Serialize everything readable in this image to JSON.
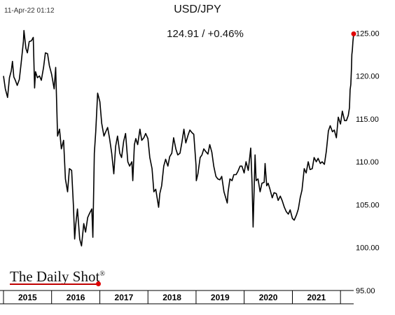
{
  "header": {
    "timestamp": "11-Apr-22 01:12",
    "title": "USD/JPY",
    "last_value_label": "124.91  /  +0.46%"
  },
  "branding": {
    "logo_text": "The Daily Shot",
    "logo_mark": "®",
    "accent_color": "#e00000"
  },
  "chart_data": {
    "type": "line",
    "title": "USD/JPY",
    "xlabel": "",
    "ylabel": "",
    "x_range": [
      "2015-01-01",
      "2022-04-11"
    ],
    "ylim": [
      95,
      126
    ],
    "y_ticks": [
      "95.00",
      "100.00",
      "105.00",
      "110.00",
      "115.00",
      "120.00",
      "125.00"
    ],
    "x_categories": [
      "2015",
      "2016",
      "2017",
      "2018",
      "2019",
      "2020",
      "2021"
    ],
    "grid": false,
    "legend": "none",
    "line_color": "#000000",
    "last_point_color": "#e00000",
    "series": [
      {
        "x": [
          "2015-01-01",
          "2015-01-15",
          "2015-02-01",
          "2015-02-15",
          "2015-03-01",
          "2015-03-10",
          "2015-03-20",
          "2015-04-01",
          "2015-04-15",
          "2015-05-01",
          "2015-05-15",
          "2015-06-01",
          "2015-06-05",
          "2015-06-20",
          "2015-07-01",
          "2015-07-15",
          "2015-08-01",
          "2015-08-15",
          "2015-08-25",
          "2015-09-01",
          "2015-09-15",
          "2015-10-01",
          "2015-10-15",
          "2015-11-01",
          "2015-11-15",
          "2015-12-01",
          "2015-12-15",
          "2016-01-01",
          "2016-01-20",
          "2016-02-01",
          "2016-02-15",
          "2016-03-01",
          "2016-03-15",
          "2016-04-01",
          "2016-04-15",
          "2016-05-01",
          "2016-05-15",
          "2016-06-01",
          "2016-06-15",
          "2016-06-24",
          "2016-07-01",
          "2016-07-15",
          "2016-08-01",
          "2016-08-15",
          "2016-09-01",
          "2016-09-15",
          "2016-10-01",
          "2016-10-15",
          "2016-11-01",
          "2016-11-09",
          "2016-11-20",
          "2016-12-01",
          "2016-12-15",
          "2017-01-01",
          "2017-01-15",
          "2017-02-01",
          "2017-02-15",
          "2017-03-01",
          "2017-03-15",
          "2017-04-01",
          "2017-04-17",
          "2017-05-01",
          "2017-05-15",
          "2017-06-01",
          "2017-06-15",
          "2017-07-01",
          "2017-07-15",
          "2017-08-01",
          "2017-08-15",
          "2017-09-01",
          "2017-09-08",
          "2017-09-20",
          "2017-10-01",
          "2017-10-15",
          "2017-11-01",
          "2017-11-15",
          "2017-12-01",
          "2017-12-15",
          "2018-01-01",
          "2018-01-15",
          "2018-02-01",
          "2018-02-15",
          "2018-03-01",
          "2018-03-23",
          "2018-04-01",
          "2018-04-15",
          "2018-05-01",
          "2018-05-15",
          "2018-06-01",
          "2018-06-15",
          "2018-07-01",
          "2018-07-15",
          "2018-08-01",
          "2018-08-15",
          "2018-09-01",
          "2018-09-15",
          "2018-10-01",
          "2018-10-15",
          "2018-11-01",
          "2018-11-15",
          "2018-12-01",
          "2018-12-15",
          "2019-01-01",
          "2019-01-03",
          "2019-01-15",
          "2019-02-01",
          "2019-02-15",
          "2019-03-01",
          "2019-03-15",
          "2019-04-01",
          "2019-04-15",
          "2019-05-01",
          "2019-05-15",
          "2019-06-01",
          "2019-06-15",
          "2019-07-01",
          "2019-07-15",
          "2019-08-01",
          "2019-08-26",
          "2019-09-01",
          "2019-09-15",
          "2019-10-01",
          "2019-10-15",
          "2019-11-01",
          "2019-11-15",
          "2019-12-01",
          "2019-12-15",
          "2020-01-01",
          "2020-01-15",
          "2020-02-01",
          "2020-02-20",
          "2020-03-01",
          "2020-03-09",
          "2020-03-24",
          "2020-04-01",
          "2020-04-15",
          "2020-05-01",
          "2020-05-15",
          "2020-06-01",
          "2020-06-08",
          "2020-06-20",
          "2020-07-01",
          "2020-07-15",
          "2020-08-01",
          "2020-08-15",
          "2020-09-01",
          "2020-09-15",
          "2020-10-01",
          "2020-10-15",
          "2020-11-01",
          "2020-11-15",
          "2020-12-01",
          "2020-12-15",
          "2021-01-01",
          "2021-01-15",
          "2021-02-01",
          "2021-02-15",
          "2021-03-01",
          "2021-03-15",
          "2021-04-01",
          "2021-04-15",
          "2021-05-01",
          "2021-05-15",
          "2021-06-01",
          "2021-06-15",
          "2021-07-01",
          "2021-07-15",
          "2021-08-01",
          "2021-08-15",
          "2021-09-01",
          "2021-09-15",
          "2021-10-01",
          "2021-10-15",
          "2021-11-01",
          "2021-11-15",
          "2021-12-01",
          "2021-12-15",
          "2022-01-01",
          "2022-01-15",
          "2022-02-01",
          "2022-02-15",
          "2022-03-01",
          "2022-03-10",
          "2022-03-15",
          "2022-03-20",
          "2022-03-25",
          "2022-03-28",
          "2022-04-01",
          "2022-04-05",
          "2022-04-11"
        ],
        "y": [
          120.0,
          118.5,
          117.5,
          119.8,
          120.6,
          121.7,
          119.9,
          119.5,
          118.9,
          119.6,
          121.5,
          124.0,
          125.3,
          123.2,
          122.7,
          124.0,
          124.1,
          124.5,
          118.6,
          120.5,
          119.8,
          120.0,
          119.5,
          121.0,
          122.7,
          122.6,
          121.2,
          120.2,
          118.5,
          121.0,
          113.0,
          113.8,
          111.5,
          112.5,
          108.0,
          106.5,
          109.2,
          109.0,
          104.8,
          101.0,
          102.5,
          104.5,
          101.0,
          100.2,
          102.8,
          101.8,
          103.5,
          104.0,
          104.5,
          101.2,
          111.0,
          113.5,
          118.0,
          117.0,
          114.5,
          113.0,
          113.5,
          114.0,
          112.8,
          111.0,
          108.6,
          111.8,
          113.0,
          111.0,
          110.5,
          112.4,
          113.3,
          110.0,
          109.5,
          110.0,
          107.8,
          112.0,
          112.7,
          112.0,
          113.8,
          112.5,
          112.8,
          113.3,
          112.7,
          110.5,
          109.2,
          106.5,
          106.8,
          104.7,
          106.3,
          107.2,
          109.5,
          110.3,
          109.5,
          110.6,
          111.0,
          112.8,
          111.5,
          110.8,
          111.0,
          112.2,
          113.8,
          112.2,
          113.1,
          113.7,
          113.4,
          113.2,
          109.6,
          107.8,
          108.6,
          110.5,
          110.8,
          111.5,
          111.2,
          110.9,
          112.0,
          111.1,
          109.5,
          108.3,
          108.0,
          107.9,
          108.3,
          106.5,
          105.2,
          106.5,
          108.0,
          107.8,
          108.5,
          108.5,
          108.9,
          109.5,
          109.5,
          108.7,
          110.0,
          109.0,
          111.6,
          107.5,
          102.4,
          110.8,
          107.8,
          108.0,
          106.5,
          107.5,
          107.6,
          109.8,
          107.2,
          107.5,
          106.8,
          105.8,
          106.4,
          106.3,
          105.5,
          106.0,
          105.5,
          104.7,
          104.2,
          103.9,
          104.4,
          103.4,
          103.2,
          103.8,
          104.5,
          105.8,
          106.7,
          109.2,
          108.7,
          110.0,
          109.1,
          109.2,
          110.5,
          110.0,
          110.4,
          109.8,
          110.0,
          109.7,
          111.2,
          113.6,
          114.2,
          113.5,
          113.7,
          112.8,
          115.2,
          114.4,
          115.9,
          114.8,
          114.8,
          115.4,
          116.3,
          118.4,
          119.0,
          120.8,
          122.5,
          123.0,
          124.0,
          124.91
        ]
      }
    ]
  }
}
